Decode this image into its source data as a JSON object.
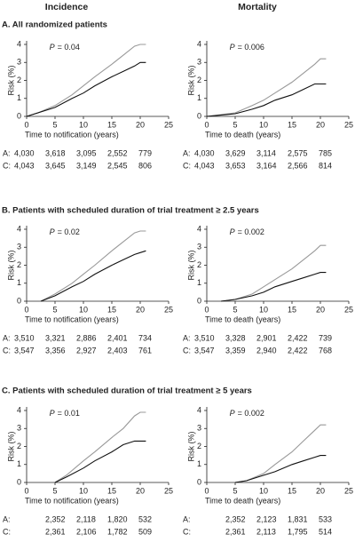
{
  "header": {
    "columns": [
      "Incidence",
      "Mortality"
    ]
  },
  "sections": [
    {
      "title": "A. All randomized patients"
    },
    {
      "title": "B. Patients with scheduled duration of trial treatment ≥ 2.5 years"
    },
    {
      "title": "C. Patients with scheduled duration of trial treatment ≥ 5 years"
    }
  ],
  "chart_data": [
    {
      "type": "line",
      "ylabel": "Risk (%)",
      "xlabel": "Time to notification (years)",
      "p_symbol": "P",
      "p_text": "= 0.04",
      "xlim": [
        0,
        25
      ],
      "ylim": [
        0,
        4
      ],
      "xticks": [
        0,
        5,
        10,
        15,
        20,
        25
      ],
      "yticks": [
        0,
        1,
        2,
        3,
        4
      ],
      "series": [
        {
          "color": "#999999",
          "x": [
            0,
            2,
            5,
            8,
            10,
            12,
            15,
            17,
            19,
            20,
            21
          ],
          "values": [
            0,
            0.2,
            0.6,
            1.2,
            1.7,
            2.2,
            2.9,
            3.4,
            3.9,
            4.0,
            4.0
          ]
        },
        {
          "color": "#111111",
          "x": [
            0,
            5,
            8,
            10,
            12,
            15,
            17,
            19,
            20,
            21
          ],
          "values": [
            0,
            0.5,
            1.0,
            1.3,
            1.7,
            2.2,
            2.5,
            2.8,
            3.0,
            3.0
          ]
        }
      ],
      "risk_table": [
        {
          "label": "A:",
          "cells": [
            "4,030",
            "3,618",
            "3,095",
            "2,552",
            "779"
          ]
        },
        {
          "label": "C:",
          "cells": [
            "4,043",
            "3,645",
            "3,149",
            "2,545",
            "806"
          ]
        }
      ]
    },
    {
      "type": "line",
      "ylabel": "Risk (%)",
      "xlabel": "Time to death (years)",
      "p_symbol": "P",
      "p_text": "= 0.006",
      "xlim": [
        0,
        25
      ],
      "ylim": [
        0,
        4
      ],
      "xticks": [
        0,
        5,
        10,
        15,
        20,
        25
      ],
      "yticks": [
        0,
        1,
        2,
        3,
        4
      ],
      "series": [
        {
          "color": "#999999",
          "x": [
            0,
            5,
            8,
            10,
            12,
            15,
            17,
            19,
            20,
            21
          ],
          "values": [
            0,
            0.2,
            0.6,
            0.9,
            1.3,
            1.9,
            2.4,
            2.9,
            3.2,
            3.2
          ]
        },
        {
          "color": "#111111",
          "x": [
            0,
            5,
            8,
            10,
            12,
            15,
            17,
            19,
            21
          ],
          "values": [
            0,
            0.15,
            0.4,
            0.6,
            0.9,
            1.2,
            1.5,
            1.8,
            1.8
          ]
        }
      ],
      "risk_table": [
        {
          "label": "A:",
          "cells": [
            "4,030",
            "3,629",
            "3,114",
            "2,575",
            "785"
          ]
        },
        {
          "label": "C:",
          "cells": [
            "4,043",
            "3,653",
            "3,164",
            "2,566",
            "814"
          ]
        }
      ]
    },
    {
      "type": "line",
      "ylabel": "Risk (%)",
      "xlabel": "Time to notification (years)",
      "p_symbol": "P",
      "p_text": "= 0.02",
      "xlim": [
        0,
        25
      ],
      "ylim": [
        0,
        4
      ],
      "xticks": [
        0,
        5,
        10,
        15,
        20,
        25
      ],
      "yticks": [
        0,
        1,
        2,
        3,
        4
      ],
      "series": [
        {
          "color": "#999999",
          "x": [
            2.5,
            5,
            8,
            10,
            12,
            15,
            17,
            19,
            20,
            21
          ],
          "values": [
            0,
            0.4,
            1.0,
            1.5,
            2.0,
            2.8,
            3.3,
            3.8,
            3.9,
            3.9
          ]
        },
        {
          "color": "#111111",
          "x": [
            2.5,
            5,
            8,
            10,
            12,
            15,
            17,
            19,
            20,
            21
          ],
          "values": [
            0,
            0.3,
            0.8,
            1.1,
            1.5,
            2.0,
            2.3,
            2.6,
            2.7,
            2.8
          ]
        }
      ],
      "risk_table": [
        {
          "label": "A:",
          "cells": [
            "3,510",
            "3,321",
            "2,886",
            "2,401",
            "734"
          ]
        },
        {
          "label": "C:",
          "cells": [
            "3,547",
            "3,356",
            "2,927",
            "2,403",
            "761"
          ]
        }
      ]
    },
    {
      "type": "line",
      "ylabel": "Risk (%)",
      "xlabel": "Time to death (years)",
      "p_symbol": "P",
      "p_text": "= 0.002",
      "xlim": [
        0,
        25
      ],
      "ylim": [
        0,
        4
      ],
      "xticks": [
        0,
        5,
        10,
        15,
        20,
        25
      ],
      "yticks": [
        0,
        1,
        2,
        3,
        4
      ],
      "series": [
        {
          "color": "#999999",
          "x": [
            2.5,
            5,
            8,
            10,
            12,
            15,
            17,
            19,
            20,
            21
          ],
          "values": [
            0,
            0.1,
            0.4,
            0.8,
            1.2,
            1.8,
            2.3,
            2.8,
            3.1,
            3.1
          ]
        },
        {
          "color": "#111111",
          "x": [
            2.5,
            5,
            8,
            10,
            12,
            15,
            17,
            19,
            20,
            21
          ],
          "values": [
            0,
            0.1,
            0.3,
            0.5,
            0.8,
            1.1,
            1.3,
            1.5,
            1.6,
            1.6
          ]
        }
      ],
      "risk_table": [
        {
          "label": "A:",
          "cells": [
            "3,510",
            "3,328",
            "2,901",
            "2,422",
            "739"
          ]
        },
        {
          "label": "C:",
          "cells": [
            "3,547",
            "3,359",
            "2,940",
            "2,422",
            "768"
          ]
        }
      ]
    },
    {
      "type": "line",
      "ylabel": "Risk (%)",
      "xlabel": "Time to notification (years)",
      "p_symbol": "P",
      "p_text": "= 0.01",
      "xlim": [
        0,
        25
      ],
      "ylim": [
        0,
        4
      ],
      "xticks": [
        0,
        5,
        10,
        15,
        20,
        25
      ],
      "yticks": [
        0,
        1,
        2,
        3,
        4
      ],
      "series": [
        {
          "color": "#999999",
          "x": [
            5,
            7,
            10,
            12,
            15,
            17,
            19,
            20,
            21
          ],
          "values": [
            0,
            0.4,
            1.2,
            1.7,
            2.5,
            3.0,
            3.7,
            3.9,
            3.9
          ]
        },
        {
          "color": "#111111",
          "x": [
            5,
            7,
            10,
            12,
            15,
            17,
            19,
            21
          ],
          "values": [
            0,
            0.3,
            0.8,
            1.2,
            1.7,
            2.1,
            2.3,
            2.3
          ]
        }
      ],
      "risk_table": [
        {
          "label": "A:",
          "cells": [
            null,
            "2,352",
            "2,118",
            "1,820",
            "532"
          ]
        },
        {
          "label": "C:",
          "cells": [
            null,
            "2,361",
            "2,106",
            "1,782",
            "509"
          ]
        }
      ]
    },
    {
      "type": "line",
      "ylabel": "Risk (%)",
      "xlabel": "Time to death (years)",
      "p_symbol": "P",
      "p_text": "= 0.002",
      "xlim": [
        0,
        25
      ],
      "ylim": [
        0,
        4
      ],
      "xticks": [
        0,
        5,
        10,
        15,
        20,
        25
      ],
      "yticks": [
        0,
        1,
        2,
        3,
        4
      ],
      "series": [
        {
          "color": "#999999",
          "x": [
            5,
            7,
            10,
            12,
            15,
            17,
            19,
            20,
            21
          ],
          "values": [
            0,
            0.1,
            0.5,
            1.0,
            1.7,
            2.3,
            2.9,
            3.2,
            3.2
          ]
        },
        {
          "color": "#111111",
          "x": [
            5,
            7,
            10,
            12,
            15,
            17,
            19,
            20,
            21
          ],
          "values": [
            0,
            0.1,
            0.4,
            0.6,
            1.0,
            1.2,
            1.4,
            1.5,
            1.5
          ]
        }
      ],
      "risk_table": [
        {
          "label": "A:",
          "cells": [
            null,
            "2,352",
            "2,123",
            "1,831",
            "533"
          ]
        },
        {
          "label": "C:",
          "cells": [
            null,
            "2,361",
            "2,113",
            "1,795",
            "514"
          ]
        }
      ]
    }
  ]
}
